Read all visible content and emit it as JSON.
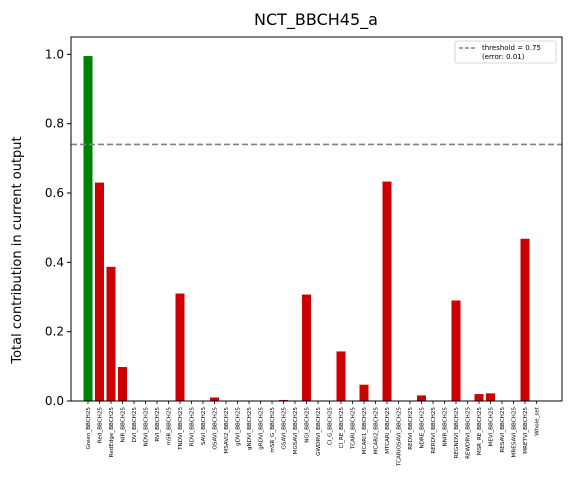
{
  "chart_data": {
    "type": "bar",
    "title": "NCT_BBCH45_a",
    "xlabel": "",
    "ylabel": "Total contribution in current output",
    "ylim": [
      0,
      1.05
    ],
    "yticks": [
      "0.0",
      "0.2",
      "0.4",
      "0.6",
      "0.8",
      "1.0"
    ],
    "ytick_values": [
      0.0,
      0.2,
      0.4,
      0.6,
      0.8,
      1.0
    ],
    "grid": false,
    "legend_placement": "top-right",
    "legend": {
      "label_line1": "threshold = 0.75",
      "label_line2": "(error: 0.01)"
    },
    "threshold": 0.74,
    "colors": {
      "above_threshold": "#008000",
      "below_threshold": "#cc0000",
      "threshold_line": "#808080"
    },
    "categories": [
      "Green_BBCH25",
      "Red_BBCH25",
      "RedEdge_BBCH25",
      "NIR_BBCH25",
      "DVI_BBCH25",
      "NDVI_BBCH25",
      "RVI_BBCH25",
      "mSR_BBCH25",
      "TNDVI_BBCH25",
      "RDVI_BBCH25",
      "SAVI_BBCH25",
      "OSAVI_BBCH25",
      "MSAVI2_BBCH25",
      "gDVI_BBCH25",
      "gNDVI_BBCH25",
      "gRDVI_BBCH25",
      "mSR_G_BBCH25",
      "GSAVI_BBCH25",
      "MGSAVI_BBCH25",
      "NGI_BBCH25",
      "GWDRVI_BBCH25",
      "CI_G_BBCH25",
      "CI_RE_BBCH25",
      "TCARI_BBCH25",
      "MCARI1_BBCH25",
      "MCARI2_BBCH25",
      "MTCARI_BBCH25",
      "TCARIOSAVI_BBCH25",
      "REDVI_BBCH25",
      "NDRE_BBCH25",
      "RERDVI_BBCH25",
      "NNIR_BBCH25",
      "REGNDVI_BBCH25",
      "REWDRVI_BBCH25",
      "MSR_RE_BBCH25",
      "MEVI_BBCH25",
      "RESAVI_BBCH25",
      "MRESAVI_BBCH25",
      "MRETVI_BBCH25",
      "Whole_set"
    ],
    "values": [
      0.995,
      0.63,
      0.387,
      0.098,
      0,
      0,
      0,
      0,
      0.31,
      0,
      0,
      0.01,
      0,
      0,
      0,
      0,
      0,
      0.003,
      0,
      0.307,
      0,
      0,
      0.143,
      0,
      0.047,
      0,
      0.633,
      0,
      0,
      0.016,
      0,
      0,
      0.29,
      0,
      0.02,
      0.022,
      0,
      0,
      0.468,
      0
    ]
  }
}
